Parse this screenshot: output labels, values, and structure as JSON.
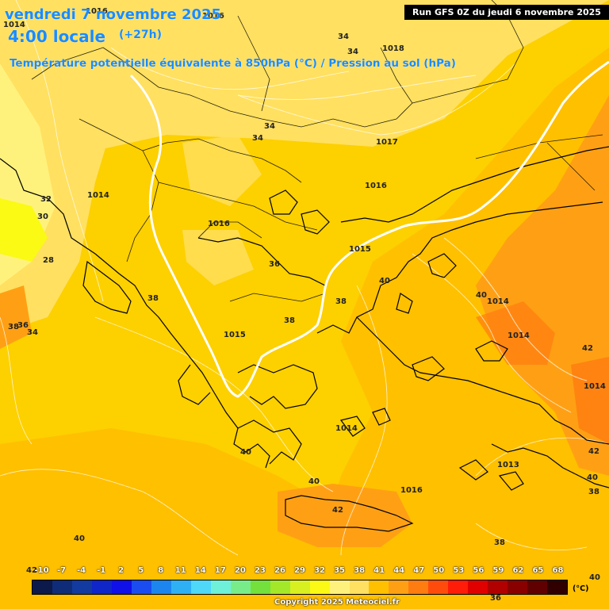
{
  "header": {
    "date": "vendredi 7 novembre 2025",
    "hour": "4:00 locale",
    "lead": "(+27h)",
    "subtitle": "Température potentielle équivalente à 850hPa (°C) / Pression au sol (hPa)",
    "run": "Run GFS 0Z du jeudi 6 novembre 2025"
  },
  "legend": {
    "unit": "(°C)",
    "ticks": [
      "-10",
      "-7",
      "-4",
      "-1",
      "2",
      "5",
      "8",
      "11",
      "14",
      "17",
      "20",
      "23",
      "26",
      "29",
      "32",
      "35",
      "38",
      "41",
      "44",
      "47",
      "50",
      "53",
      "56",
      "59",
      "62",
      "65",
      "68"
    ],
    "colors": [
      "#0b1a4a",
      "#0f2c78",
      "#133a9e",
      "#1026c8",
      "#1010e8",
      "#1a4cf0",
      "#1c86ee",
      "#2fb0f5",
      "#4fd8f8",
      "#6ff0d8",
      "#79ec8a",
      "#73e03c",
      "#a4e82a",
      "#d8f020",
      "#fafa14",
      "#fff27c",
      "#ffe060",
      "#ffc000",
      "#ffa014",
      "#ff7c10",
      "#ff4c0c",
      "#ff1c08",
      "#e00000",
      "#b00000",
      "#880000",
      "#600000",
      "#300000"
    ]
  },
  "pressure_labels": [
    "1016",
    "1016",
    "1014",
    "1018",
    "1017",
    "1016",
    "1014",
    "1016",
    "1015",
    "1015",
    "1014",
    "1014",
    "1014",
    "1014",
    "1013",
    "1016"
  ],
  "temperature_labels": [
    "34",
    "34",
    "34",
    "34",
    "32",
    "30",
    "28",
    "36",
    "38",
    "38",
    "38",
    "36",
    "34",
    "40",
    "40",
    "38",
    "40",
    "40",
    "42",
    "42",
    "40",
    "38",
    "38",
    "40",
    "42",
    "40",
    "36",
    "42"
  ],
  "footer": {
    "copyright": "Copyright 2025 Meteociel.fr"
  },
  "colors": {
    "title": "#1a8cff",
    "isobar_1015": "#ffffff"
  }
}
